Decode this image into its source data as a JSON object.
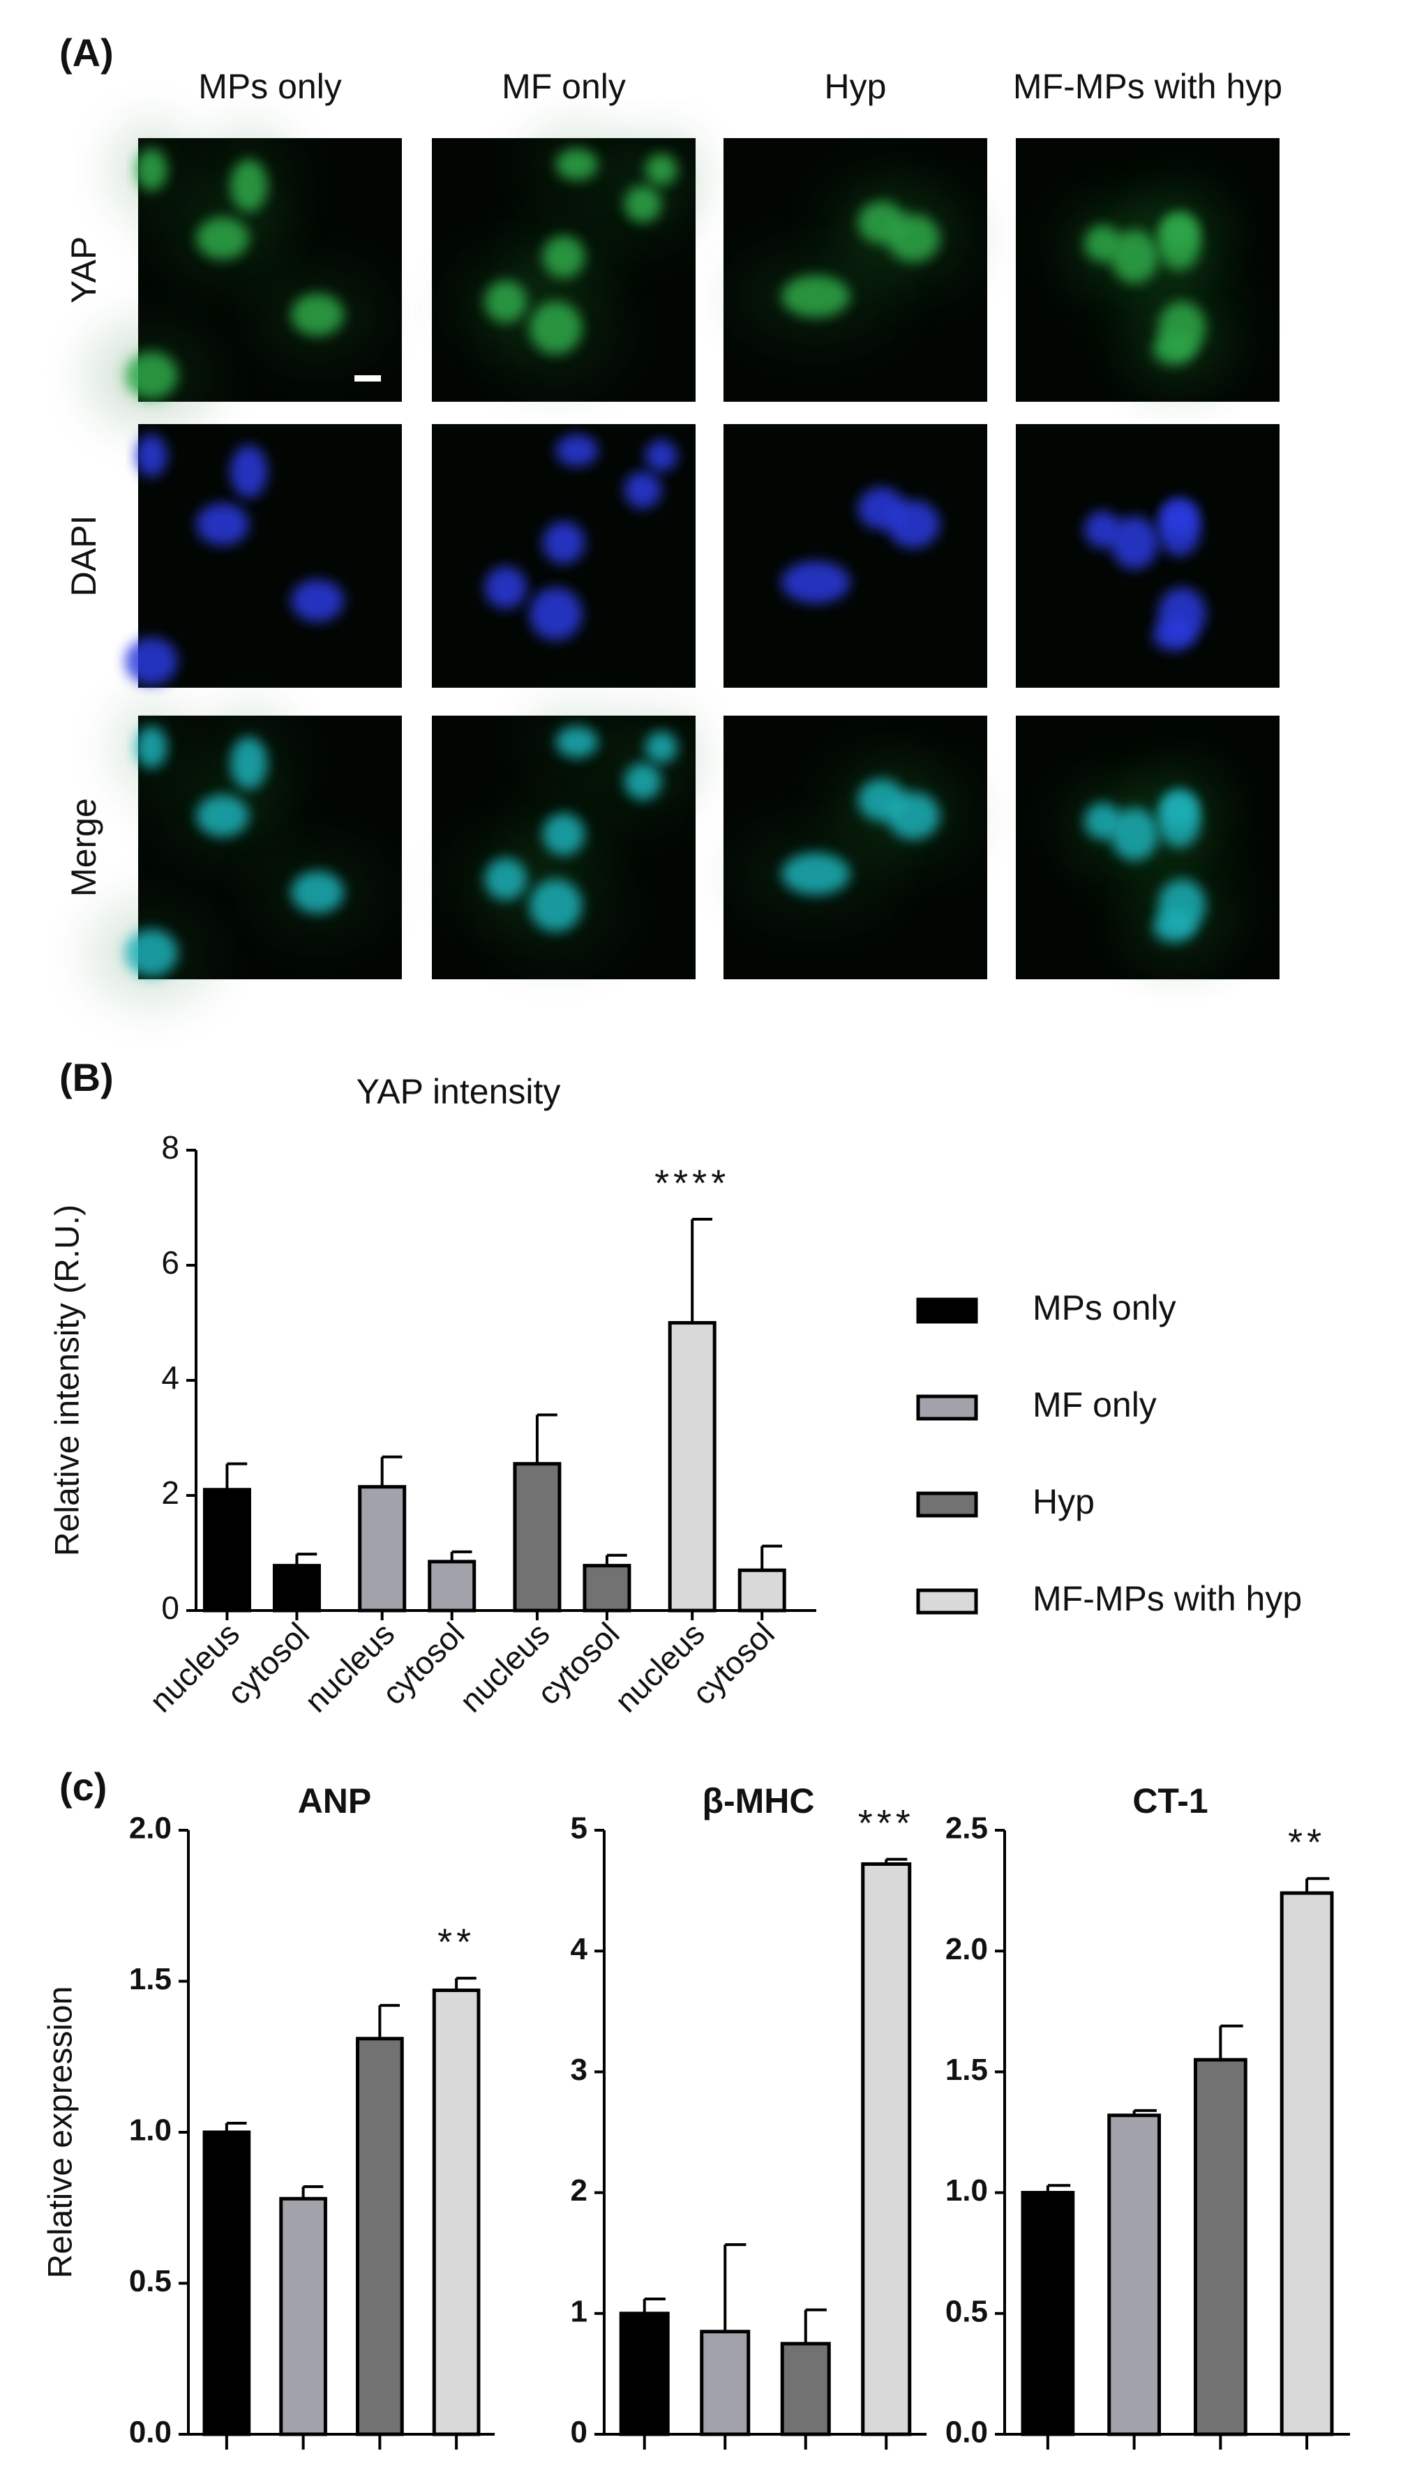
{
  "panel_a": {
    "label": "(A)",
    "columns": [
      "MPs only",
      "MF only",
      "Hyp",
      "MF-MPs with hyp"
    ],
    "rows": [
      "YAP",
      "DAPI",
      "Merge"
    ]
  },
  "chart_data": [
    {
      "type": "bar",
      "panel_label": "(B)",
      "title": "YAP intensity",
      "ylabel": "Relative intensity (R.U.)",
      "categories": [
        "nucleus",
        "cytosol"
      ],
      "series": [
        {
          "name": "MPs only",
          "color": "#000000",
          "values": [
            2.1,
            0.78
          ],
          "errors": [
            0.45,
            0.2
          ]
        },
        {
          "name": "MF only",
          "color": "#a2a2aa",
          "values": [
            2.15,
            0.85
          ],
          "errors": [
            0.52,
            0.17
          ]
        },
        {
          "name": "Hyp",
          "color": "#727272",
          "values": [
            2.55,
            0.78
          ],
          "errors": [
            0.85,
            0.18
          ]
        },
        {
          "name": "MF-MPs with hyp",
          "color": "#d9d9d9",
          "values": [
            5.0,
            0.7
          ],
          "errors": [
            1.8,
            0.42
          ],
          "annotations": [
            "****",
            null
          ]
        }
      ],
      "ylim": [
        0,
        8
      ],
      "yticks": [
        0,
        2,
        4,
        6,
        8
      ],
      "legend": "right"
    },
    {
      "type": "bar",
      "panel_label": "(c)",
      "title": "ANP",
      "ylabel": "Relative expression",
      "categories": [
        null,
        null,
        null,
        null
      ],
      "values": [
        1.0,
        0.78,
        1.31,
        1.47
      ],
      "errors": [
        0.03,
        0.04,
        0.11,
        0.04
      ],
      "colors": [
        "#000000",
        "#a2a2aa",
        "#727272",
        "#d9d9d9"
      ],
      "annotations": [
        null,
        null,
        null,
        "**"
      ],
      "ylim": [
        0,
        2
      ],
      "yticks": [
        {
          "value": 0,
          "label": "0.0"
        },
        0.5,
        {
          "value": 1,
          "label": "1.0"
        },
        1.5,
        {
          "value": 2,
          "label": "2.0"
        }
      ]
    },
    {
      "type": "bar",
      "title": "β-MHC",
      "categories": [
        null,
        null,
        null,
        null
      ],
      "values": [
        1.0,
        0.85,
        0.75,
        4.72
      ],
      "errors": [
        0.12,
        0.72,
        0.28,
        0.04
      ],
      "colors": [
        "#000000",
        "#a2a2aa",
        "#727272",
        "#d9d9d9"
      ],
      "annotations": [
        null,
        null,
        null,
        "***"
      ],
      "ylim": [
        0,
        5
      ],
      "yticks": [
        0,
        1,
        2,
        3,
        4,
        5
      ]
    },
    {
      "type": "bar",
      "title": "CT-1",
      "categories": [
        null,
        null,
        null,
        null
      ],
      "values": [
        1.0,
        1.32,
        1.55,
        2.24
      ],
      "errors": [
        0.03,
        0.02,
        0.14,
        0.06
      ],
      "colors": [
        "#000000",
        "#a2a2aa",
        "#727272",
        "#d9d9d9"
      ],
      "annotations": [
        null,
        null,
        null,
        "**"
      ],
      "ylim": [
        0,
        2.5
      ],
      "yticks": [
        {
          "value": 0,
          "label": "0.0"
        },
        0.5,
        {
          "value": 1,
          "label": "1.0"
        },
        1.5,
        {
          "value": 2,
          "label": "2.0"
        },
        2.5
      ]
    }
  ]
}
